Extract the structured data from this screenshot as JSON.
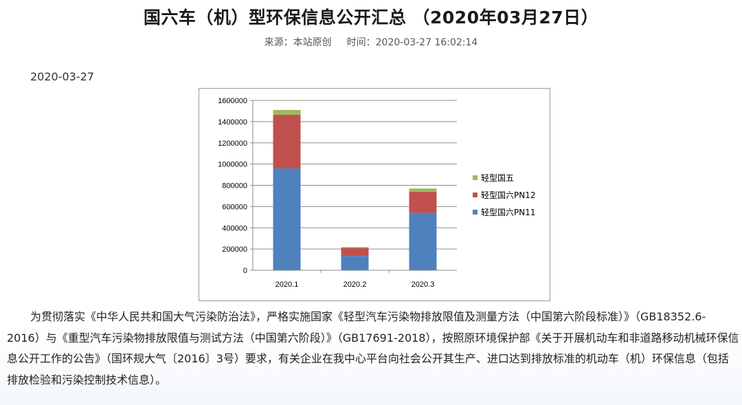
{
  "header": {
    "title": "国六车（机）型环保信息公开汇总 （2020年03月27日）",
    "source": "来源：本站原创",
    "time": "时间：2020-03-27 16:02:14"
  },
  "date_line": "2020-03-27",
  "chart_data": {
    "type": "bar",
    "stacked": true,
    "categories": [
      "2020.1",
      "2020.2",
      "2020.3"
    ],
    "series": [
      {
        "name": "轻型国六PN11",
        "color": "#4f81bd",
        "values": [
          960000,
          135000,
          540000
        ]
      },
      {
        "name": "轻型国六PN12",
        "color": "#c0504d",
        "values": [
          505000,
          75000,
          200000
        ]
      },
      {
        "name": "轻型国五",
        "color": "#9bbb59",
        "values": [
          45000,
          8000,
          30000
        ]
      }
    ],
    "ylim": [
      0,
      1600000
    ],
    "yticks": [
      "0",
      "200000",
      "400000",
      "600000",
      "800000",
      "1000000",
      "1200000",
      "1400000",
      "1600000"
    ],
    "grid": true,
    "legend": "right",
    "title": "",
    "xlabel": "",
    "ylabel": ""
  },
  "paragraph": "为贯彻落实《中华人民共和国大气污染防治法》，严格实施国家《轻型汽车污染物排放限值及测量方法（中国第六阶段标准）》（GB18352.6-2016）与《重型汽车污染物排放限值与测试方法（中国第六阶段）》（GB17691-2018），按照原环境保护部《关于开展机动车和非道路移动机械环保信息公开工作的公告》（国环规大气〔2016〕3号）要求，有关企业在我中心平台向社会公开其生产、进口达到排放标准的机动车（机）环保信息（包括排放检验和污染控制技术信息）。"
}
